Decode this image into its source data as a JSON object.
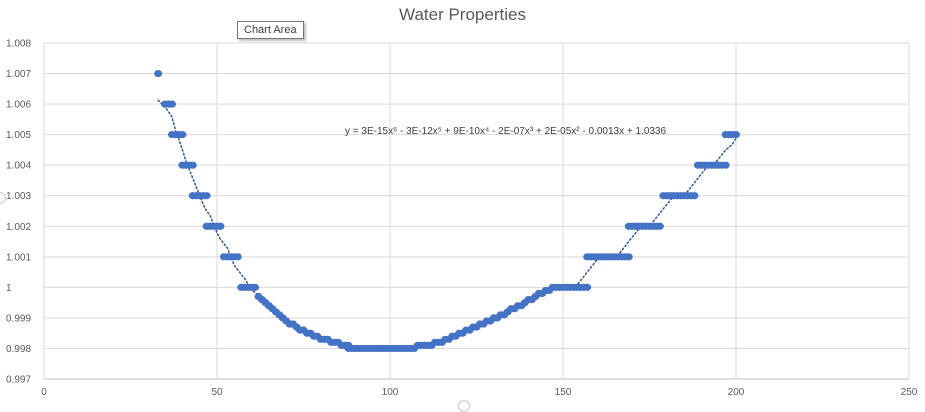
{
  "chart_data": {
    "type": "scatter",
    "title": "Water Properties",
    "xlabel": "",
    "ylabel": "",
    "xlim": [
      0,
      250
    ],
    "ylim": [
      0.997,
      1.008
    ],
    "x_ticks": [
      "0",
      "50",
      "100",
      "150",
      "200",
      "250"
    ],
    "y_ticks": [
      "0.997",
      "0.998",
      "0.999",
      "1",
      "1.001",
      "1.002",
      "1.003",
      "1.004",
      "1.005",
      "1.006",
      "1.007",
      "1.008"
    ],
    "grid": true,
    "legend": "none",
    "marker_color": "#4472c4",
    "trendline": {
      "style": "dotted",
      "color": "#2e5597",
      "equation": "y = 3E-15x⁶ - 3E-12x⁵ + 9E-10x⁴ - 2E-07x³ + 2E-05x² - 0.0013x + 1.0336"
    },
    "series": [
      {
        "points": [
          [
            33,
            1.007
          ],
          [
            35,
            1.006
          ],
          [
            36,
            1.006
          ],
          [
            37,
            1.006
          ],
          [
            37,
            1.005
          ],
          [
            38,
            1.005
          ],
          [
            39,
            1.005
          ],
          [
            40,
            1.005
          ],
          [
            40,
            1.004
          ],
          [
            41,
            1.004
          ],
          [
            42,
            1.004
          ],
          [
            43,
            1.004
          ],
          [
            43,
            1.003
          ],
          [
            44,
            1.003
          ],
          [
            45,
            1.003
          ],
          [
            46,
            1.003
          ],
          [
            47,
            1.003
          ],
          [
            47,
            1.002
          ],
          [
            48,
            1.002
          ],
          [
            49,
            1.002
          ],
          [
            50,
            1.002
          ],
          [
            51,
            1.002
          ],
          [
            52,
            1.001
          ],
          [
            53,
            1.001
          ],
          [
            54,
            1.001
          ],
          [
            55,
            1.001
          ],
          [
            56,
            1.001
          ],
          [
            57,
            1.0
          ],
          [
            58,
            1.0
          ],
          [
            59,
            1.0
          ],
          [
            60,
            1.0
          ],
          [
            61,
            1.0
          ],
          [
            62,
            0.9997
          ],
          [
            63,
            0.9996
          ],
          [
            64,
            0.9995
          ],
          [
            65,
            0.9994
          ],
          [
            66,
            0.9993
          ],
          [
            67,
            0.9992
          ],
          [
            68,
            0.9991
          ],
          [
            69,
            0.999
          ],
          [
            70,
            0.9989
          ],
          [
            71,
            0.9988
          ],
          [
            72,
            0.9988
          ],
          [
            73,
            0.9987
          ],
          [
            74,
            0.9986
          ],
          [
            75,
            0.9986
          ],
          [
            76,
            0.9985
          ],
          [
            77,
            0.9985
          ],
          [
            78,
            0.9984
          ],
          [
            79,
            0.9984
          ],
          [
            80,
            0.9983
          ],
          [
            81,
            0.9983
          ],
          [
            82,
            0.9983
          ],
          [
            83,
            0.9982
          ],
          [
            84,
            0.9982
          ],
          [
            85,
            0.9982
          ],
          [
            86,
            0.9981
          ],
          [
            87,
            0.9981
          ],
          [
            88,
            0.9981
          ],
          [
            88,
            0.998
          ],
          [
            89,
            0.998
          ],
          [
            90,
            0.998
          ],
          [
            91,
            0.998
          ],
          [
            92,
            0.998
          ],
          [
            93,
            0.998
          ],
          [
            94,
            0.998
          ],
          [
            95,
            0.998
          ],
          [
            96,
            0.998
          ],
          [
            97,
            0.998
          ],
          [
            98,
            0.998
          ],
          [
            99,
            0.998
          ],
          [
            100,
            0.998
          ],
          [
            101,
            0.998
          ],
          [
            102,
            0.998
          ],
          [
            103,
            0.998
          ],
          [
            104,
            0.998
          ],
          [
            105,
            0.998
          ],
          [
            106,
            0.998
          ],
          [
            107,
            0.998
          ],
          [
            108,
            0.9981
          ],
          [
            109,
            0.9981
          ],
          [
            110,
            0.9981
          ],
          [
            111,
            0.9981
          ],
          [
            112,
            0.9981
          ],
          [
            113,
            0.9982
          ],
          [
            114,
            0.9982
          ],
          [
            115,
            0.9982
          ],
          [
            116,
            0.9983
          ],
          [
            117,
            0.9983
          ],
          [
            118,
            0.9984
          ],
          [
            119,
            0.9984
          ],
          [
            120,
            0.9985
          ],
          [
            121,
            0.9985
          ],
          [
            122,
            0.9986
          ],
          [
            123,
            0.9986
          ],
          [
            124,
            0.9987
          ],
          [
            125,
            0.9987
          ],
          [
            126,
            0.9988
          ],
          [
            127,
            0.9988
          ],
          [
            128,
            0.9989
          ],
          [
            129,
            0.9989
          ],
          [
            130,
            0.999
          ],
          [
            131,
            0.999
          ],
          [
            132,
            0.9991
          ],
          [
            133,
            0.9991
          ],
          [
            134,
            0.9992
          ],
          [
            135,
            0.9993
          ],
          [
            136,
            0.9993
          ],
          [
            137,
            0.9994
          ],
          [
            138,
            0.9994
          ],
          [
            139,
            0.9995
          ],
          [
            140,
            0.9996
          ],
          [
            141,
            0.9996
          ],
          [
            142,
            0.9997
          ],
          [
            143,
            0.9998
          ],
          [
            144,
            0.9998
          ],
          [
            145,
            0.9999
          ],
          [
            146,
            0.9999
          ],
          [
            147,
            1.0
          ],
          [
            148,
            1.0
          ],
          [
            149,
            1.0
          ],
          [
            150,
            1.0
          ],
          [
            151,
            1.0
          ],
          [
            152,
            1.0
          ],
          [
            153,
            1.0
          ],
          [
            154,
            1.0
          ],
          [
            155,
            1.0
          ],
          [
            156,
            1.0
          ],
          [
            157,
            1.0
          ],
          [
            157,
            1.001
          ],
          [
            158,
            1.001
          ],
          [
            159,
            1.001
          ],
          [
            160,
            1.001
          ],
          [
            161,
            1.001
          ],
          [
            162,
            1.001
          ],
          [
            163,
            1.001
          ],
          [
            164,
            1.001
          ],
          [
            165,
            1.001
          ],
          [
            166,
            1.001
          ],
          [
            167,
            1.001
          ],
          [
            168,
            1.001
          ],
          [
            169,
            1.001
          ],
          [
            169,
            1.002
          ],
          [
            170,
            1.002
          ],
          [
            171,
            1.002
          ],
          [
            172,
            1.002
          ],
          [
            173,
            1.002
          ],
          [
            174,
            1.002
          ],
          [
            175,
            1.002
          ],
          [
            176,
            1.002
          ],
          [
            177,
            1.002
          ],
          [
            178,
            1.002
          ],
          [
            179,
            1.003
          ],
          [
            180,
            1.003
          ],
          [
            181,
            1.003
          ],
          [
            182,
            1.003
          ],
          [
            183,
            1.003
          ],
          [
            184,
            1.003
          ],
          [
            185,
            1.003
          ],
          [
            186,
            1.003
          ],
          [
            187,
            1.003
          ],
          [
            188,
            1.003
          ],
          [
            189,
            1.004
          ],
          [
            190,
            1.004
          ],
          [
            191,
            1.004
          ],
          [
            192,
            1.004
          ],
          [
            193,
            1.004
          ],
          [
            194,
            1.004
          ],
          [
            195,
            1.004
          ],
          [
            196,
            1.004
          ],
          [
            197,
            1.004
          ],
          [
            197,
            1.005
          ],
          [
            198,
            1.005
          ],
          [
            199,
            1.005
          ],
          [
            200,
            1.005
          ]
        ]
      }
    ]
  },
  "tooltip": {
    "label": "Chart Area"
  }
}
